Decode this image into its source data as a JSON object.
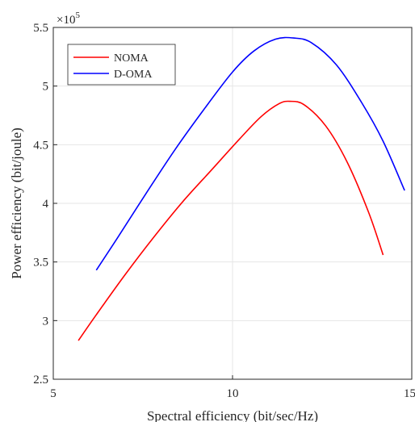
{
  "chart_data": {
    "type": "line",
    "xlabel": "Spectral efficiency (bit/sec/Hz)",
    "ylabel": "Power efficiency (bit/joule)",
    "y_exponent_label": "×10",
    "y_exponent_power": "5",
    "xlim": [
      5,
      15
    ],
    "ylim": [
      2.5,
      5.5
    ],
    "x_ticks": [
      5,
      10,
      15
    ],
    "x_tick_labels": [
      "5",
      "10",
      "15"
    ],
    "y_ticks": [
      2.5,
      3,
      3.5,
      4,
      4.5,
      5,
      5.5
    ],
    "y_tick_labels": [
      "2.5",
      "3",
      "3.5",
      "4",
      "4.5",
      "5",
      "5.5"
    ],
    "grid": true,
    "legend_position": "top-left",
    "series": [
      {
        "name": "NOMA",
        "color": "#ff0000",
        "x": [
          5.7,
          6.2,
          7.0,
          7.8,
          8.6,
          9.4,
          10.2,
          10.8,
          11.3,
          11.6,
          12.0,
          12.6,
          13.2,
          13.8,
          14.2
        ],
        "y": [
          2.83,
          3.05,
          3.39,
          3.71,
          4.01,
          4.28,
          4.55,
          4.74,
          4.85,
          4.87,
          4.84,
          4.66,
          4.35,
          3.92,
          3.56
        ]
      },
      {
        "name": "D-OMA",
        "color": "#0000ff",
        "x": [
          6.2,
          6.8,
          7.6,
          8.4,
          9.2,
          10.0,
          10.6,
          11.2,
          11.7,
          12.2,
          12.9,
          13.6,
          14.2,
          14.8
        ],
        "y": [
          3.43,
          3.71,
          4.09,
          4.46,
          4.8,
          5.12,
          5.3,
          5.4,
          5.41,
          5.37,
          5.18,
          4.86,
          4.53,
          4.11
        ]
      }
    ]
  }
}
